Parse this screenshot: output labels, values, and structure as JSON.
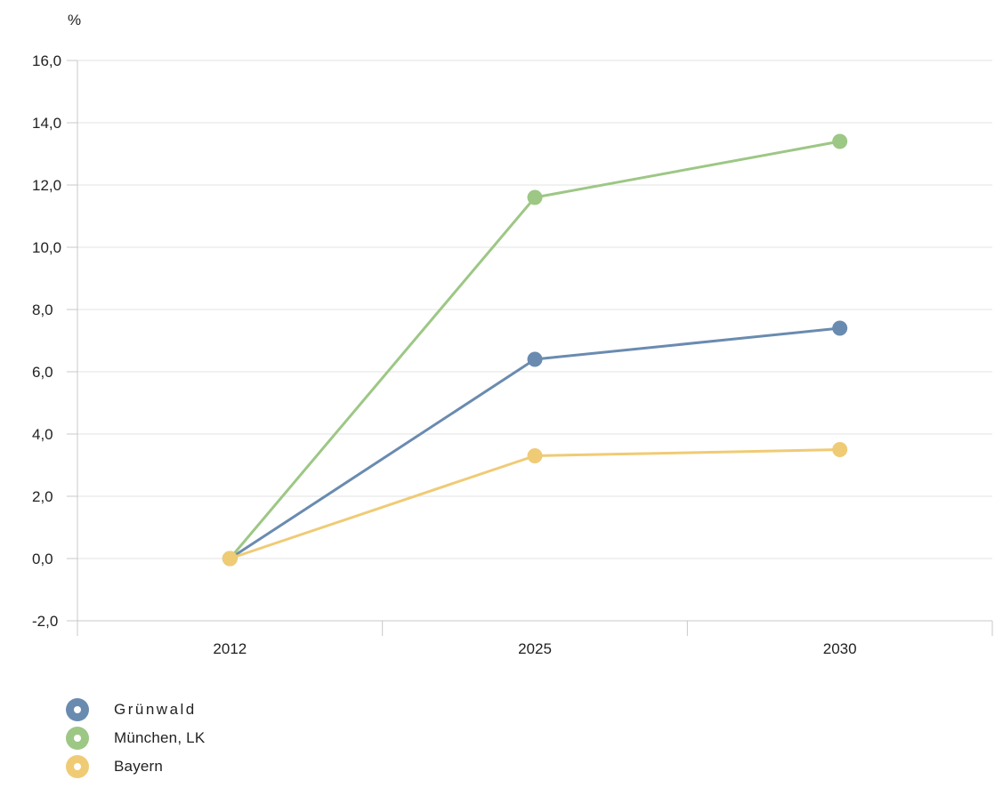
{
  "chart_data": {
    "type": "line",
    "ylabel": "%",
    "categories": [
      "2012",
      "2025",
      "2030"
    ],
    "ylim": [
      -2,
      16
    ],
    "yticks": [
      "-2,0",
      "0,0",
      "2,0",
      "4,0",
      "6,0",
      "8,0",
      "10,0",
      "12,0",
      "14,0",
      "16,0"
    ],
    "grid": true,
    "legend_position": "bottom-left",
    "series": [
      {
        "name": "Grünwald",
        "color": "#6a8bb0",
        "values": [
          0.0,
          6.4,
          7.4
        ]
      },
      {
        "name": "München, LK",
        "color": "#9dc785",
        "values": [
          0.0,
          11.6,
          13.4
        ]
      },
      {
        "name": "Bayern",
        "color": "#f0cb75",
        "values": [
          0.0,
          3.3,
          3.5
        ]
      }
    ]
  }
}
